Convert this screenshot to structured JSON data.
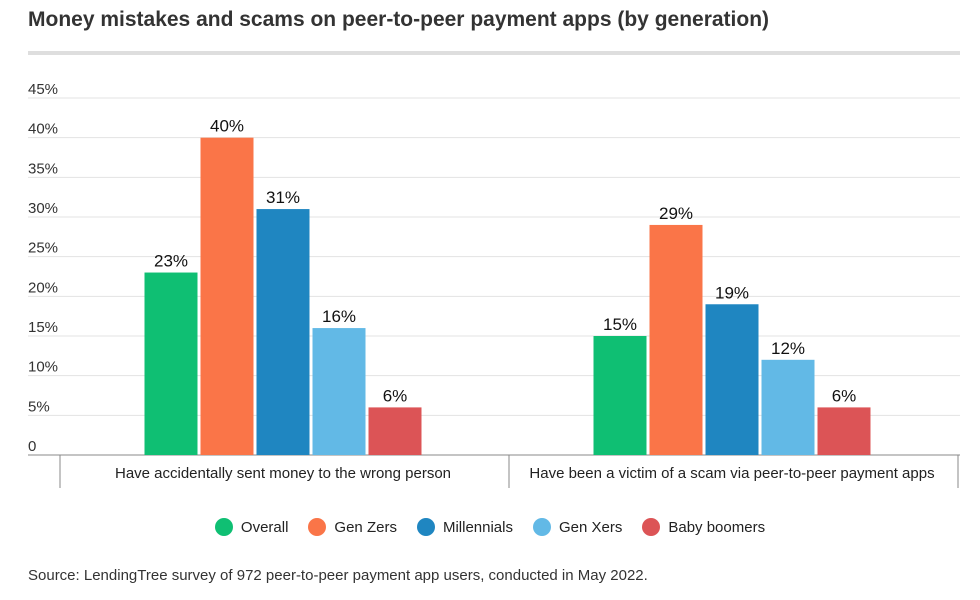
{
  "title": "Money mistakes and scams on peer-to-peer payment apps (by generation)",
  "source": "Source: LendingTree survey of 972 peer-to-peer payment app users, conducted in May 2022.",
  "chart_data": {
    "type": "bar",
    "title": "Money mistakes and scams on peer-to-peer payment apps (by generation)",
    "categories": [
      "Have accidentally sent money to the wrong person",
      "Have been a victim of a scam via peer-to-peer payment apps"
    ],
    "series": [
      {
        "name": "Overall",
        "color": "#0fbf73",
        "values": [
          23,
          15
        ]
      },
      {
        "name": "Gen Zers",
        "color": "#fa7548",
        "values": [
          40,
          29
        ]
      },
      {
        "name": "Millennials",
        "color": "#1f86c1",
        "values": [
          31,
          19
        ]
      },
      {
        "name": "Gen Xers",
        "color": "#62b9e6",
        "values": [
          16,
          12
        ]
      },
      {
        "name": "Baby boomers",
        "color": "#dc5456",
        "values": [
          6,
          6
        ]
      }
    ],
    "ylim": [
      0,
      45
    ],
    "yticks": [
      "0",
      "5%",
      "10%",
      "15%",
      "20%",
      "25%",
      "30%",
      "35%",
      "40%",
      "45%"
    ],
    "value_suffix": "%",
    "grid": true,
    "legend": "bottom"
  }
}
